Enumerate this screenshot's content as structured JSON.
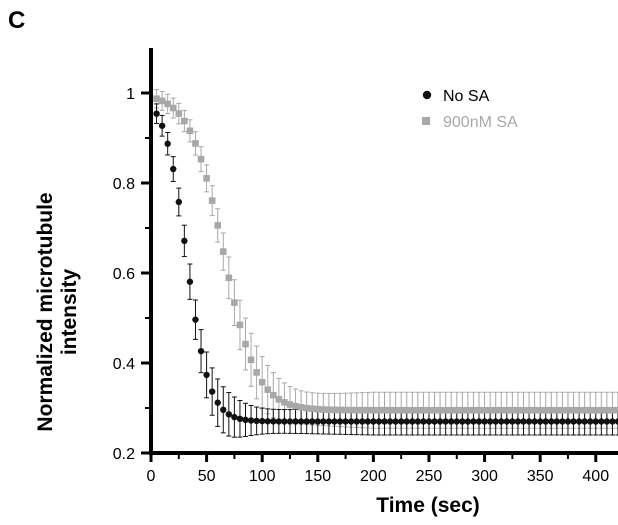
{
  "panel_label": "C",
  "chart_data": {
    "type": "scatter",
    "title": "",
    "xlabel": "Time (sec)",
    "ylabel_lines": [
      "Normalized microtubule",
      "intensity"
    ],
    "xlim": [
      0,
      420
    ],
    "ylim": [
      0.2,
      1.1
    ],
    "x_ticks": [
      0,
      50,
      100,
      150,
      200,
      250,
      300,
      350,
      400
    ],
    "y_ticks": [
      0.2,
      0.4,
      0.6,
      0.8,
      1.0
    ],
    "y_tick_labels": [
      "0.2",
      "0.4",
      "0.6",
      "0.8",
      "1"
    ],
    "grid": false,
    "legend_position": "top-right",
    "x_sampling": {
      "start": 5,
      "step": 5,
      "end": 420
    },
    "series": [
      {
        "name": "No SA",
        "color": "#111111",
        "marker": "circle",
        "model": {
          "floor": 0.27,
          "amplitude": 0.73,
          "midpoint": 32,
          "width": 10
        },
        "error_band": {
          "early": 0.02,
          "late": 0.03
        }
      },
      {
        "name": "900nM SA",
        "color": "#a8a8a8",
        "marker": "square",
        "model": {
          "floor": 0.295,
          "amplitude": 0.705,
          "midpoint": 65,
          "width": 15
        },
        "error_band": {
          "early": 0.02,
          "late": 0.04
        }
      }
    ]
  }
}
